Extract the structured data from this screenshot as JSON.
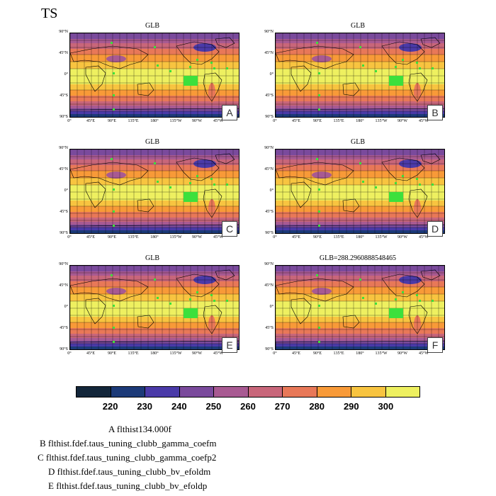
{
  "title": "TS",
  "panels": [
    {
      "label": "A",
      "title": "GLB"
    },
    {
      "label": "B",
      "title": "GLB"
    },
    {
      "label": "C",
      "title": "GLB"
    },
    {
      "label": "D",
      "title": "GLB"
    },
    {
      "label": "E",
      "title": "GLB"
    },
    {
      "label": "F",
      "title": "GLB=288.2960888548465"
    }
  ],
  "lat_ticks": [
    "90°N",
    "45°N",
    "0°",
    "45°S",
    "90°S"
  ],
  "lon_ticks": [
    "0°",
    "45°E",
    "90°E",
    "135°E",
    "180°",
    "135°W",
    "90°W",
    "45°W"
  ],
  "colorbar": {
    "colors": [
      "#13263a",
      "#1c3a78",
      "#4a3aa8",
      "#7a4a9c",
      "#a85a92",
      "#c8667a",
      "#e87858",
      "#f89a38",
      "#f8c440",
      "#eef060"
    ],
    "labels": [
      "220",
      "230",
      "240",
      "250",
      "260",
      "270",
      "280",
      "290",
      "300"
    ]
  },
  "legend": [
    "A  flthist134.000f",
    "B  flthist.fdef.taus_tuning_clubb_gamma_coefm",
    "C  flthist.fdef.taus_tuning_clubb_gamma_coefp2",
    "D  flthist.fdef.taus_tuning_clubb_bv_efoldm",
    "E  flthist.fdef.taus_tuning_clubb_bv_efoldp"
  ],
  "chart_data": {
    "type": "heatmap",
    "title": "TS",
    "variable": "TS",
    "colorbar_levels": [
      220,
      230,
      240,
      250,
      260,
      270,
      280,
      290,
      300
    ],
    "latitude_bands_approx": {
      "lat": [
        90,
        60,
        30,
        0,
        -30,
        -60,
        -75,
        -90
      ],
      "TS": [
        252,
        262,
        285,
        302,
        290,
        268,
        232,
        225
      ]
    },
    "panel_F_global_mean": 288.2960888548465
  }
}
